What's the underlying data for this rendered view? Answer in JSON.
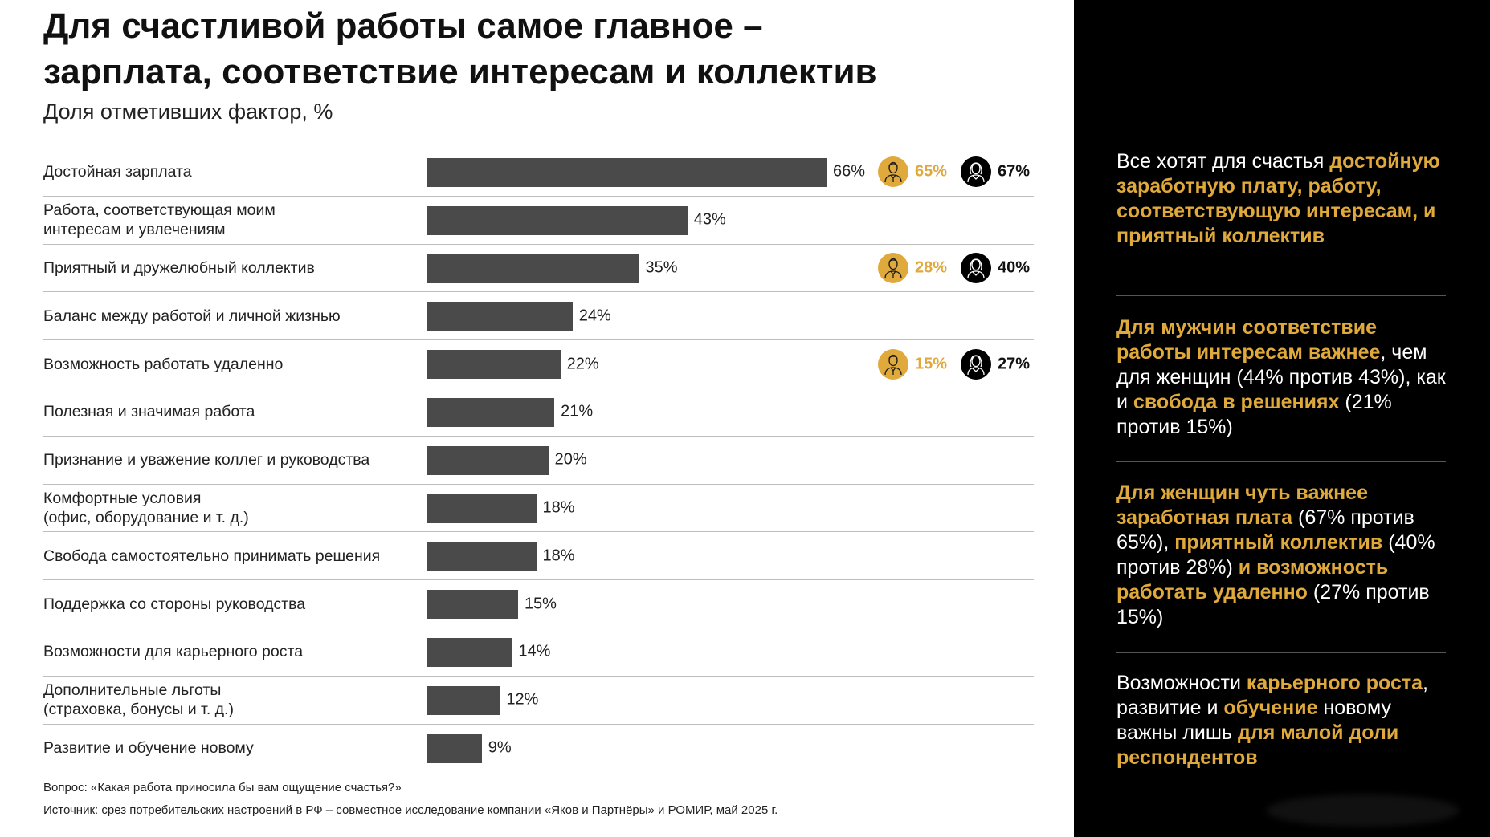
{
  "title": {
    "line1": "Для счастливой работы самое главное –",
    "line2": "зарплата, соответствие интересам и коллектив"
  },
  "subtitle": "Доля отметивших фактор, %",
  "chart_data": {
    "type": "bar",
    "orientation": "horizontal",
    "unit": "%",
    "categories": [
      "Достойная зарплата",
      "Работа, соответствующая моим\nинтересам и увлечениям",
      "Приятный и дружелюбный коллектив",
      "Баланс между работой и личной жизнью",
      "Возможность работать удаленно",
      "Полезная и значимая работа",
      "Признание и уважение коллег и руководства",
      "Комфортные условия\n(офис, оборудование и т. д.)",
      "Свобода самостоятельно принимать решения",
      "Поддержка со стороны руководства",
      "Возможности для карьерного роста",
      "Дополнительные льготы\n(страховка, бонусы и т. д.)",
      "Развитие и обучение новому"
    ],
    "values": [
      66,
      43,
      35,
      24,
      22,
      21,
      20,
      18,
      18,
      15,
      14,
      12,
      9
    ],
    "labels": [
      "66%",
      "43%",
      "35%",
      "24%",
      "22%",
      "21%",
      "20%",
      "18%",
      "18%",
      "15%",
      "14%",
      "12%",
      "9%"
    ],
    "gender_breakdown": [
      {
        "index": 0,
        "men": "65%",
        "women": "67%"
      },
      {
        "index": 2,
        "men": "28%",
        "women": "40%"
      },
      {
        "index": 4,
        "men": "15%",
        "women": "27%"
      }
    ],
    "xlim": [
      0,
      100
    ]
  },
  "colors": {
    "bar": "#4a4a4a",
    "accent": "#e0a93b",
    "panel": "#000000"
  },
  "icons": {
    "men": "man-icon",
    "women": "woman-icon"
  },
  "footer": {
    "question": "Вопрос: «Какая работа приносила бы вам ощущение счастья?»",
    "source": "Источник: срез потребительских настроений в РФ – совместное исследование компании «Яков и Партнёры» и РОМИР, май 2025 г."
  },
  "panel": {
    "blocks": [
      [
        {
          "t": "Все хотят для счастья ",
          "hl": false
        },
        {
          "t": "достойную заработную плату, работу, соответствующую интересам, и приятный коллектив",
          "hl": true
        }
      ],
      [
        {
          "t": "Для мужчин соответствие работы интересам важнее",
          "hl": true
        },
        {
          "t": ", чем для женщин (44% против 43%), как и ",
          "hl": false
        },
        {
          "t": "свобода в решениях",
          "hl": true
        },
        {
          "t": " (21% против 15%)",
          "hl": false
        }
      ],
      [
        {
          "t": "Для женщин чуть важнее заработная плата",
          "hl": true
        },
        {
          "t": " (67% против 65%), ",
          "hl": false
        },
        {
          "t": "приятный коллектив",
          "hl": true
        },
        {
          "t": " (40% против 28%) ",
          "hl": false
        },
        {
          "t": "и возможность работать удаленно",
          "hl": true
        },
        {
          "t": " (27% против 15%)",
          "hl": false
        }
      ],
      [
        {
          "t": "Возможности ",
          "hl": false
        },
        {
          "t": "карьерного роста",
          "hl": true
        },
        {
          "t": ", развитие и ",
          "hl": false
        },
        {
          "t": "обучение",
          "hl": true
        },
        {
          "t": " новому важны лишь ",
          "hl": false
        },
        {
          "t": "для малой доли респондентов",
          "hl": true
        }
      ]
    ]
  }
}
